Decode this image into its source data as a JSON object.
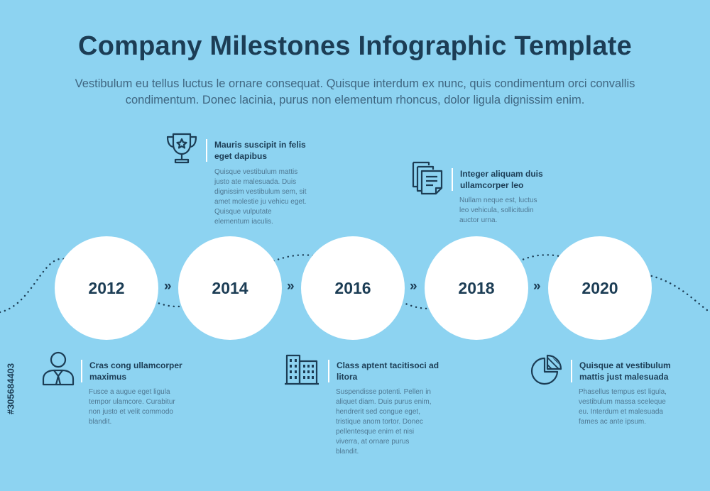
{
  "header": {
    "title": "Company Milestones Infographic Template",
    "subtitle": "Vestibulum eu tellus luctus le ornare consequat. Quisque interdum ex nunc, quis condimentum orci convallis condimentum. Donec lacinia, purus non elementum rhoncus, dolor ligula dignissim enim."
  },
  "timeline": {
    "years": [
      "2012",
      "2014",
      "2016",
      "2018",
      "2020"
    ],
    "separator": "»"
  },
  "milestones": [
    {
      "icon": "trophy-icon",
      "title": "Mauris suscipit in felis eget dapibus",
      "text": "Quisque vestibulum mattis justo ate malesuada. Duis dignissim vestibulum sem, sit amet molestie ju vehicu eget. Quisque vulputate elementum iaculis."
    },
    {
      "icon": "documents-icon",
      "title": "Integer aliquam duis ullamcorper leo",
      "text": "Nullam neque est, luctus leo vehicula, sollicitudin auctor urna."
    },
    {
      "icon": "businessman-icon",
      "title": "Cras cong ullamcorper maximus",
      "text": "Fusce a augue eget ligula tempor ulamcore. Curabitur non justo et velit commodo blandit."
    },
    {
      "icon": "buildings-icon",
      "title": "Class aptent tacitisoci ad litora",
      "text": "Suspendisse potenti. Pellen in aliquet diam. Duis purus enim, hendrerit sed congue eget, tristique anom tortor. Donec pellentesque enim et nisi viverra, at ornare purus blandit."
    },
    {
      "icon": "pie-chart-icon",
      "title": "Quisque at vestibulum mattis just malesuada",
      "text": "Phasellus tempus est ligula, vestibulum massa sceleque eu. Interdum et malesuada fames ac ante ipsum."
    }
  ],
  "stock_id": "#305684403",
  "colors": {
    "background": "#8dd3f1",
    "dark": "#1c3d55",
    "circle": "#ffffff"
  }
}
